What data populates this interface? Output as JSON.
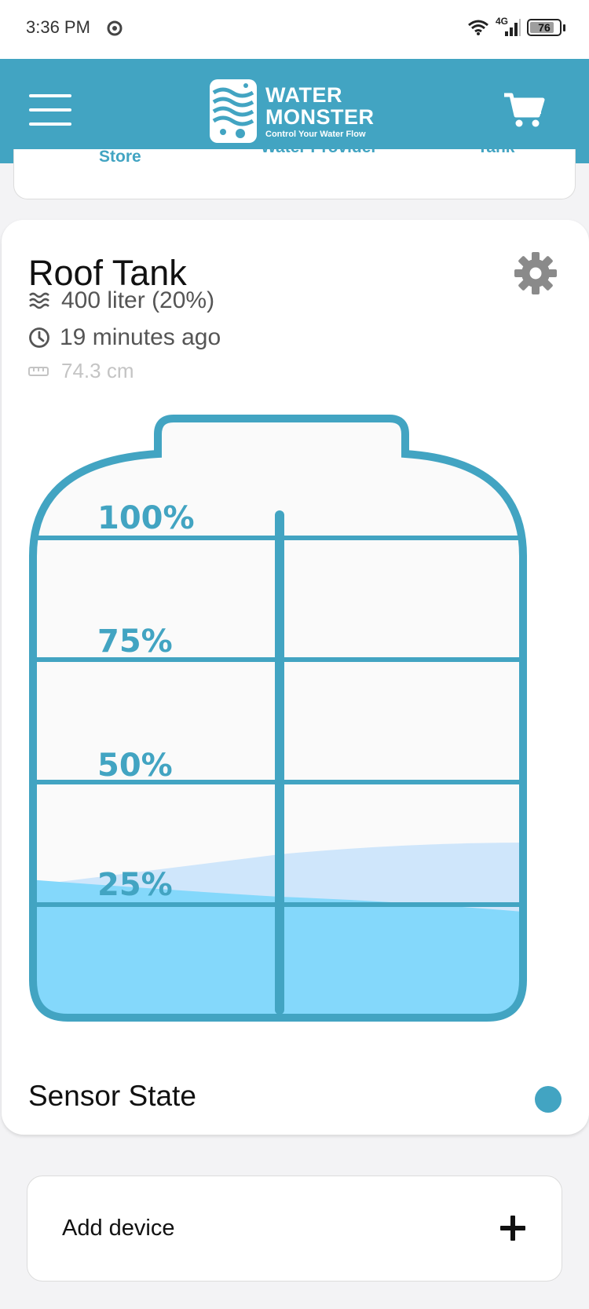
{
  "status_bar": {
    "time": "3:36 PM",
    "network": "4G",
    "battery": "76",
    "battery_level": 0.76,
    "icons": [
      "chrome-icon",
      "wifi-icon",
      "cellular-signal-icon",
      "battery-icon"
    ]
  },
  "header": {
    "brand_line1": "WATER",
    "brand_line2": "MONSTER",
    "tagline": "Control Your Water Flow",
    "menu_icon": "hamburger-menu-icon",
    "cart_icon": "shopping-cart-icon",
    "background_color": "#42a4c2"
  },
  "top_card": {
    "items": [
      {
        "label": "Store"
      },
      {
        "label": "Water Provider"
      },
      {
        "label": "Tank"
      }
    ]
  },
  "tank_card": {
    "title": "Roof Tank",
    "volume_text": "400 liter (20%)",
    "updated_text": "19 minutes ago",
    "distance_text": "74.3 cm",
    "fill_percent": 20,
    "level_labels": [
      "100%",
      "75%",
      "50%",
      "25%"
    ],
    "settings_icon": "gear-icon",
    "sensor_label": "Sensor State",
    "sensor_status_color": "#42a4c2",
    "water_color": "#84d8fb",
    "outline_color": "#42a4c2"
  },
  "add_device": {
    "label": "Add device",
    "icon": "plus-icon"
  }
}
